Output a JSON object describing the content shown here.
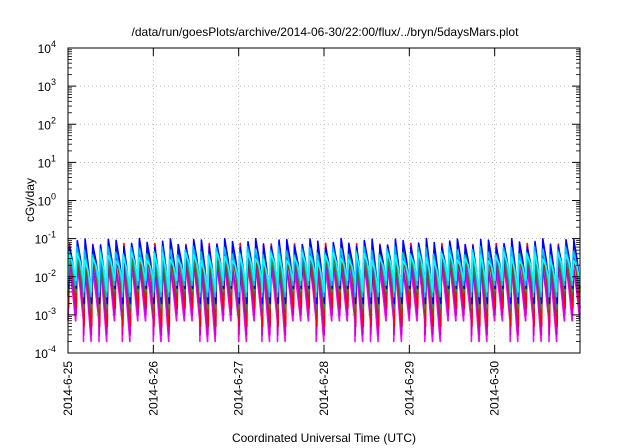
{
  "chart_data": {
    "type": "line",
    "title": "/data/run/goesPlots/archive/2014-06-30/22:00/flux/../bryn/5daysMars.plot",
    "xlabel": "Coordinated Universal Time (UTC)",
    "ylabel": "cGy/day",
    "y_scale": "log",
    "ylim": [
      0.0001,
      10000
    ],
    "xlim": [
      "2014-06-25T00:00",
      "2014-07-01T00:00"
    ],
    "grid": true,
    "legend": "none",
    "y_ticks": [
      {
        "value": 0.0001,
        "mantissa": "10",
        "exp": "-4"
      },
      {
        "value": 0.001,
        "mantissa": "10",
        "exp": "-3"
      },
      {
        "value": 0.01,
        "mantissa": "10",
        "exp": "-2"
      },
      {
        "value": 0.1,
        "mantissa": "10",
        "exp": "-1"
      },
      {
        "value": 1,
        "mantissa": "10",
        "exp": "0"
      },
      {
        "value": 10,
        "mantissa": "10",
        "exp": "1"
      },
      {
        "value": 100,
        "mantissa": "10",
        "exp": "2"
      },
      {
        "value": 1000,
        "mantissa": "10",
        "exp": "3"
      },
      {
        "value": 10000,
        "mantissa": "10",
        "exp": "4"
      }
    ],
    "x_ticks": [
      {
        "value": "2014-06-25T00:00",
        "label": "2014-6-25"
      },
      {
        "value": "2014-06-26T00:00",
        "label": "2014-6-26"
      },
      {
        "value": "2014-06-27T00:00",
        "label": "2014-6-27"
      },
      {
        "value": "2014-06-28T00:00",
        "label": "2014-6-28"
      },
      {
        "value": "2014-06-29T00:00",
        "label": "2014-6-29"
      },
      {
        "value": "2014-06-30T00:00",
        "label": "2014-6-30"
      }
    ],
    "series": [
      {
        "color": "#ff00ff",
        "peak": 0.02,
        "trough": 0.0007,
        "deep_trough": 0.0002
      },
      {
        "color": "#cc00cc",
        "peak": 0.025,
        "trough": 0.001,
        "deep_trough": 0.0003
      },
      {
        "color": "#ff0000",
        "peak": 0.06,
        "trough": 0.0015,
        "deep_trough": 0.0005
      },
      {
        "color": "#8b4513",
        "peak": 0.03,
        "trough": 0.003,
        "deep_trough": 0.001
      },
      {
        "color": "#2e8b57",
        "peak": 0.04,
        "trough": 0.004,
        "deep_trough": 0.0015
      },
      {
        "color": "#0000ff",
        "peak": 0.08,
        "trough": 0.005,
        "deep_trough": 0.002
      },
      {
        "color": "#00bfff",
        "peak": 0.05,
        "trough": 0.006,
        "deep_trough": 0.003
      },
      {
        "color": "#00ffff",
        "peak": 0.035,
        "trough": 0.008,
        "deep_trough": 0.004
      }
    ],
    "cycles_per_day": 11
  }
}
